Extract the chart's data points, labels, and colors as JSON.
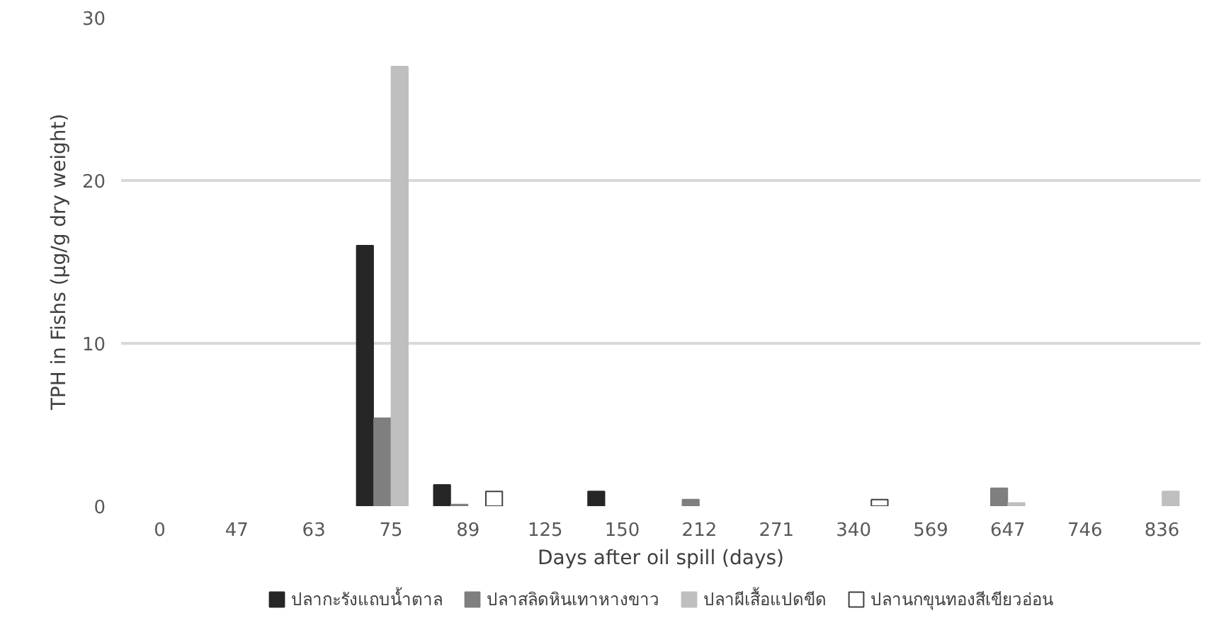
{
  "chart_data": {
    "type": "bar",
    "xlabel": "Days after oil spill (days)",
    "ylabel": "TPH in Fishs (µg/g dry weight)",
    "categories": [
      "0",
      "47",
      "63",
      "75",
      "89",
      "125",
      "150",
      "212",
      "271",
      "340",
      "569",
      "647",
      "746",
      "836"
    ],
    "series": [
      {
        "name": "ปลากะรังแถบน้ำตาล",
        "color": "#262626",
        "values": [
          null,
          null,
          null,
          16,
          1.3,
          null,
          0.9,
          null,
          null,
          null,
          null,
          null,
          null,
          null
        ]
      },
      {
        "name": "ปลาสลิดหินเทาหางขาว",
        "color": "#7f7f7f",
        "values": [
          null,
          null,
          null,
          5.4,
          0.1,
          null,
          null,
          0.4,
          null,
          null,
          null,
          1.1,
          null,
          null
        ]
      },
      {
        "name": "ปลาผีเสื้อแปดขีด",
        "color": "#bfbfbf",
        "values": [
          null,
          null,
          null,
          27,
          null,
          null,
          null,
          null,
          null,
          null,
          null,
          0.2,
          null,
          0.9
        ]
      },
      {
        "name": "ปลานกขุนทองสีเขียวอ่อน",
        "color": "#ffffff",
        "values": [
          null,
          null,
          null,
          null,
          0.9,
          null,
          null,
          null,
          null,
          0.4,
          null,
          null,
          null,
          null
        ]
      }
    ],
    "ylim": [
      0,
      30
    ],
    "yticks": [
      0,
      10,
      20,
      30
    ],
    "grid": "y",
    "legend": "bottom"
  }
}
